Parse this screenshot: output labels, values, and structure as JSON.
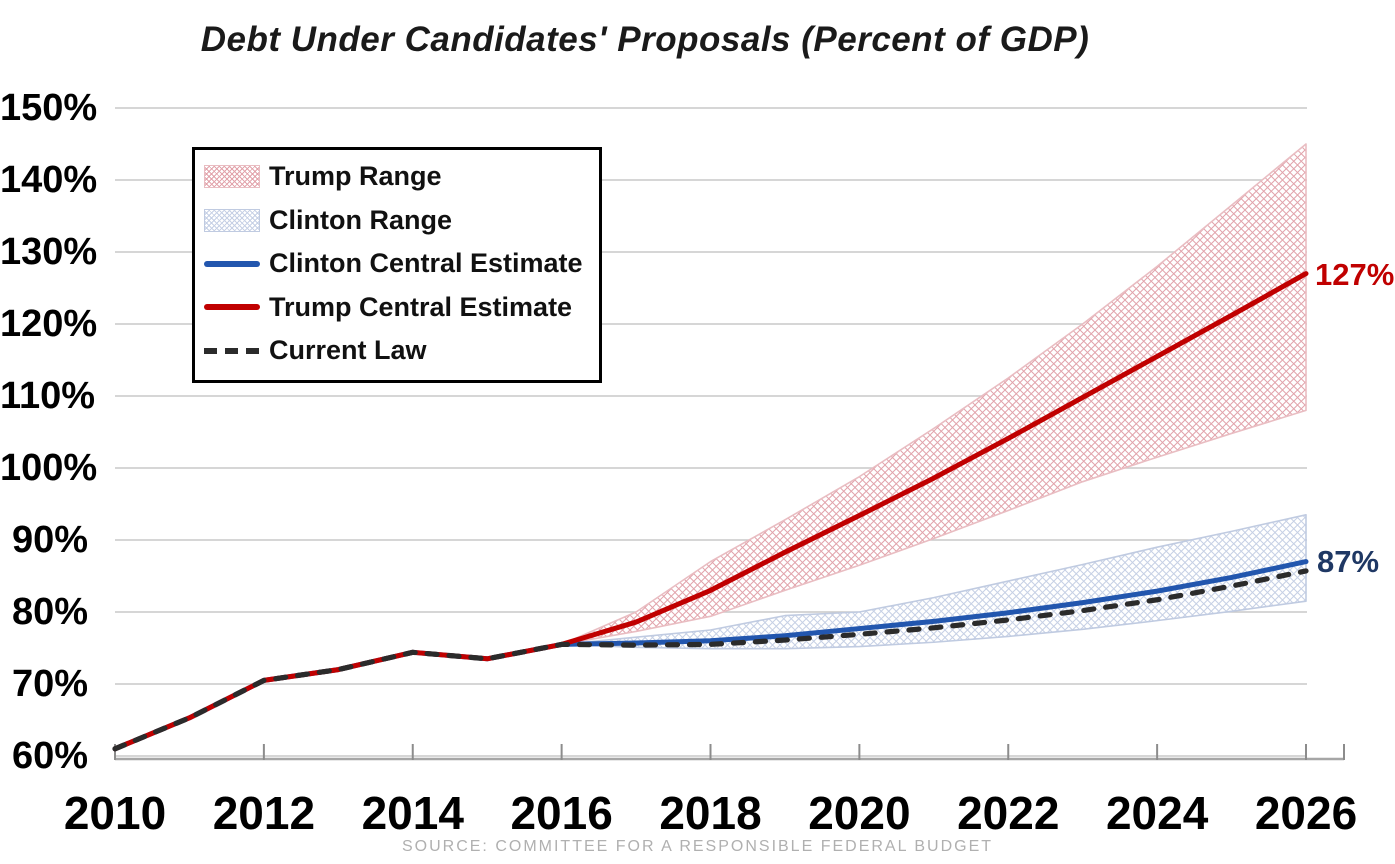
{
  "source": "SOURCE: COMMITTEE FOR A RESPONSIBLE FEDERAL BUDGET",
  "colors": {
    "red_line": "#C00000",
    "blue_line": "#2256AE",
    "dash_line": "#2B2B2B",
    "red_label": "#C00000",
    "blue_label": "#1F3864",
    "hatch_red": "#E2A3AB",
    "hatch_red_edge": "#E9BDC2",
    "hatch_blue": "#C6D0E5",
    "hatch_blue_edge": "#C0CBE1",
    "grid": "#C9C9C9",
    "axis": "#A6A6A6",
    "tick": "#8C8C8C"
  },
  "legend": {
    "items": [
      {
        "label": "Trump Range",
        "swatch": "hatch-red"
      },
      {
        "label": "Clinton Range",
        "swatch": "hatch-blue"
      },
      {
        "label": "Clinton Central Estimate",
        "swatch": "line-blue"
      },
      {
        "label": "Trump Central Estimate",
        "swatch": "line-red"
      },
      {
        "label": "Current Law",
        "swatch": "dash-dark"
      }
    ]
  },
  "chart_data": {
    "type": "line",
    "title": "Debt Under Candidates' Proposals (Percent of GDP)",
    "xlabel": "",
    "ylabel": "",
    "xlim": [
      2010,
      2026
    ],
    "ylim": [
      60,
      150
    ],
    "grid": "horizontal",
    "legend_position": "top-left",
    "x_ticks": [
      2010,
      2012,
      2014,
      2016,
      2018,
      2020,
      2022,
      2024,
      2026
    ],
    "x_tick_labels": [
      "2010",
      "2012",
      "2014",
      "2016",
      "2018",
      "2020",
      "2022",
      "2024",
      "2026"
    ],
    "y_ticks": [
      60,
      70,
      80,
      90,
      100,
      110,
      120,
      130,
      140,
      150
    ],
    "y_tick_labels": [
      "60%",
      "70%",
      "80%",
      "90%",
      "100%",
      "110%",
      "120%",
      "130%",
      "140%",
      "150%"
    ],
    "series": [
      {
        "name": "Trump Range",
        "type": "band",
        "x_start": 2016,
        "fill": "crosshatch-red",
        "upper": [
          75.5,
          80,
          87,
          92.8,
          98.8,
          105.5,
          112.5,
          120,
          128,
          136.5,
          145
        ],
        "lower": [
          75.5,
          77.3,
          79.4,
          83,
          86.5,
          90.2,
          94.1,
          98.1,
          101.5,
          104.8,
          108
        ]
      },
      {
        "name": "Clinton Range",
        "type": "band",
        "x_start": 2016,
        "fill": "crosshatch-blue",
        "upper": [
          75.5,
          76.5,
          77.5,
          79.5,
          80,
          82,
          84.3,
          86.6,
          89,
          91.2,
          93.5
        ],
        "lower": [
          75.5,
          75.1,
          74.9,
          74.9,
          75.2,
          75.8,
          76.6,
          77.6,
          78.8,
          80.1,
          81.5
        ]
      },
      {
        "name": "Clinton Central Estimate",
        "type": "line",
        "x_start": 2010,
        "line_style": "solid",
        "color_key": "blue_line",
        "values": [
          61,
          65.3,
          70.5,
          72,
          74.4,
          73.5,
          75.5,
          75.7,
          76,
          76.7,
          77.7,
          78.7,
          79.9,
          81.3,
          82.9,
          84.8,
          87
        ]
      },
      {
        "name": "Trump Central Estimate",
        "type": "line",
        "x_start": 2010,
        "line_style": "solid",
        "color_key": "red_line",
        "values": [
          61,
          65.3,
          70.5,
          72,
          74.4,
          73.5,
          75.5,
          78.6,
          83,
          88.3,
          93.4,
          98.6,
          104.1,
          109.8,
          115.5,
          121.2,
          127
        ]
      },
      {
        "name": "Current Law",
        "type": "line",
        "x_start": 2010,
        "line_style": "dashed",
        "color_key": "dash_line",
        "values": [
          61,
          65.3,
          70.5,
          72,
          74.4,
          73.5,
          75.5,
          75.4,
          75.5,
          76.1,
          76.9,
          77.8,
          78.9,
          80.2,
          81.7,
          83.6,
          85.7
        ]
      }
    ],
    "end_labels": [
      {
        "text": "127%",
        "series": "Trump Central Estimate",
        "value": 127,
        "color_key": "red_label"
      },
      {
        "text": "87%",
        "series": "Clinton Central Estimate",
        "value": 87,
        "color_key": "blue_label"
      }
    ]
  }
}
